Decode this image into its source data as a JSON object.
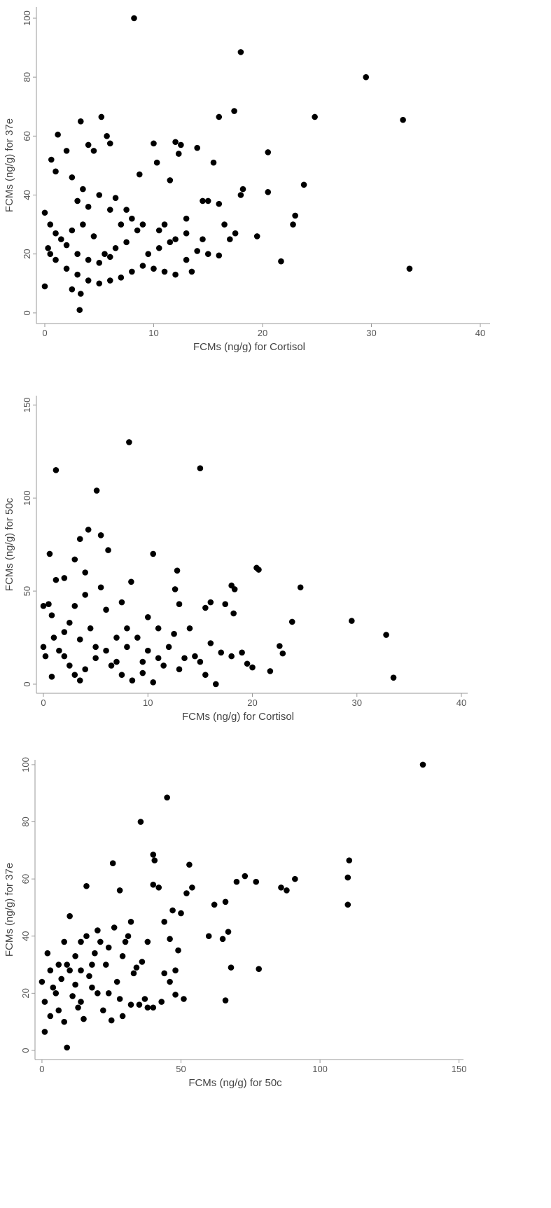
{
  "chart_data": [
    {
      "type": "scatter",
      "x_label": "FCMs (ng/g) for Cortisol",
      "y_label": "FCMs (ng/g) for 37e",
      "color": "#000000",
      "xlim": [
        -0.77,
        40.9
      ],
      "ylim": [
        -3.6,
        103.8
      ],
      "xticks": [
        0,
        10,
        20,
        30,
        40
      ],
      "yticks": [
        0,
        20,
        40,
        60,
        80,
        100
      ],
      "x": [
        8.2,
        18,
        29.5,
        17.4,
        24.8,
        16,
        32.9,
        33.5,
        21.7,
        23.8,
        20.5,
        20.5,
        22.8,
        23,
        19.5,
        18,
        18.2,
        17.5,
        0,
        0.3,
        0,
        3.2,
        3.3,
        2.5,
        1.2,
        3.3,
        5.2,
        5.7,
        6,
        10,
        12,
        12.5,
        12.3,
        14,
        15.5,
        10.3,
        8.7,
        11.5,
        1,
        0.6,
        2,
        4,
        4.5,
        2.5,
        3,
        5,
        6.5,
        7.5,
        9,
        10.5,
        12,
        13,
        14.5,
        15,
        16,
        16.5,
        17,
        15,
        14,
        13,
        12,
        13.5,
        11,
        10,
        9,
        8,
        7,
        6,
        5,
        4,
        3,
        2,
        1,
        0.5,
        1.5,
        2.5,
        3.5,
        4.5,
        5.5,
        6.5,
        7.5,
        8.5,
        9.5,
        10.5,
        11.5,
        4,
        5,
        6,
        3,
        2,
        1,
        0.5,
        7,
        8,
        6,
        4,
        3.5,
        14.5,
        16,
        13,
        11
      ],
      "values": [
        100,
        88.5,
        80,
        68.5,
        66.5,
        66.5,
        65.5,
        15,
        17.5,
        43.5,
        54.5,
        41,
        30,
        33,
        26,
        40,
        42,
        27,
        34,
        22,
        9,
        1,
        6.5,
        8,
        60.5,
        65,
        66.5,
        60,
        57.5,
        57.5,
        58,
        57,
        54,
        56,
        51,
        51,
        47,
        45,
        48,
        52,
        55,
        57,
        55,
        46,
        38,
        40,
        39,
        35,
        30,
        28,
        25,
        32,
        38,
        38,
        37,
        30,
        25,
        20,
        21,
        18,
        13,
        14,
        14,
        15,
        16,
        14,
        12,
        11,
        10,
        11,
        13,
        15,
        18,
        20,
        25,
        28,
        30,
        26,
        20,
        22,
        24,
        28,
        20,
        22,
        24,
        18,
        17,
        19,
        20,
        23,
        27,
        30,
        30,
        32,
        35,
        36,
        42,
        25,
        19.5,
        27,
        30
      ]
    },
    {
      "type": "scatter",
      "x_label": "FCMs (ng/g) for Cortisol",
      "y_label": "FCMs (ng/g) for 50c",
      "color": "#000000",
      "xlim": [
        -0.67,
        40.6
      ],
      "ylim": [
        -4.9,
        155
      ],
      "xticks": [
        0,
        10,
        20,
        30,
        40
      ],
      "yticks": [
        0,
        50,
        100,
        150
      ],
      "x": [
        8.2,
        1.2,
        15,
        5.1,
        4.3,
        5.5,
        3.5,
        6.2,
        10.5,
        0.6,
        3,
        4,
        2,
        1.2,
        8.4,
        5.5,
        7.5,
        12.8,
        12.6,
        13,
        20.4,
        20.6,
        24.6,
        18,
        18.3,
        16,
        17.4,
        18.2,
        15.5,
        29.5,
        23.8,
        32.8,
        22.6,
        22.9,
        21.7,
        33.5,
        16.5,
        0,
        0.5,
        0.8,
        0,
        0.2,
        0.8,
        2.5,
        3,
        3.5,
        4,
        5,
        6,
        7,
        8,
        9,
        10,
        11,
        11.5,
        12,
        13,
        14,
        14.5,
        15,
        15.5,
        16,
        17,
        18,
        19,
        19.5,
        20,
        1.5,
        2,
        2.5,
        3.5,
        4.5,
        5,
        6.5,
        7.5,
        8.5,
        9.5,
        10,
        11,
        12.5,
        13.5,
        3,
        4,
        6,
        1,
        2,
        7,
        8,
        9.5,
        10.5
      ],
      "values": [
        130,
        115,
        116,
        104,
        83,
        80,
        78,
        72,
        70,
        70,
        67,
        60,
        57,
        56,
        55,
        52,
        44,
        61,
        51,
        43,
        62.5,
        61.5,
        52,
        53,
        51,
        44,
        43,
        38,
        41,
        34,
        33.5,
        26.5,
        20.5,
        16.5,
        7,
        3.5,
        0,
        42,
        43,
        37,
        20,
        15,
        4,
        10,
        5,
        2,
        8,
        14,
        18,
        12,
        20,
        25,
        18,
        14,
        10,
        20,
        8,
        30,
        15,
        12,
        5,
        22,
        17,
        15,
        17,
        11,
        9,
        18,
        28,
        33,
        24,
        30,
        20,
        10,
        5,
        2,
        12,
        36,
        30,
        27,
        14,
        42,
        48,
        40,
        25,
        15,
        25,
        30,
        6,
        1
      ]
    },
    {
      "type": "scatter",
      "x_label": "FCMs (ng/g) for 50c",
      "y_label": "FCMs (ng/g) for 37e",
      "color": "#000000",
      "xlim": [
        -2.5,
        151.6
      ],
      "ylim": [
        -3.2,
        101.7
      ],
      "xticks": [
        0,
        50,
        100,
        150
      ],
      "yticks": [
        0,
        20,
        40,
        60,
        80,
        100
      ],
      "x": [
        137,
        45,
        35.5,
        40,
        40.5,
        110.5,
        25.5,
        53,
        73,
        91,
        110,
        110,
        86,
        88,
        77,
        70,
        66,
        67,
        65,
        60,
        62,
        54,
        52,
        50,
        47,
        44,
        49,
        78,
        68,
        66,
        51,
        48,
        46,
        43,
        40,
        38,
        35,
        32,
        29,
        25,
        0,
        1,
        1,
        9,
        3,
        5,
        7,
        9,
        10,
        8,
        12,
        14,
        16,
        16,
        18,
        20,
        22,
        24,
        26,
        28,
        30,
        32,
        34,
        36,
        38,
        40,
        42,
        15,
        13,
        11,
        6,
        4,
        2,
        8,
        10,
        12,
        14,
        17,
        19,
        21,
        23,
        27,
        29,
        31,
        33,
        37,
        44,
        46,
        48,
        6,
        3,
        20,
        14,
        18,
        24,
        28
      ],
      "values": [
        100,
        88.5,
        80,
        68.5,
        66.5,
        66.5,
        65.5,
        65,
        61,
        60,
        60.5,
        51,
        57,
        56,
        59,
        59,
        52,
        41.5,
        39,
        40,
        51,
        57,
        55,
        48,
        49,
        45,
        35,
        28.5,
        29,
        17.5,
        18,
        19.5,
        24,
        17,
        15,
        15,
        16,
        16,
        12,
        10.5,
        24,
        17,
        6.5,
        1,
        12,
        20,
        25,
        30,
        47,
        38,
        33,
        28,
        57.5,
        40,
        30,
        20,
        14,
        36,
        43,
        56,
        38,
        45,
        29,
        31,
        38,
        58,
        57,
        11,
        15,
        19,
        14,
        22,
        34,
        10,
        28,
        23,
        17,
        26,
        34,
        38,
        30,
        24,
        33,
        40,
        27,
        18,
        27,
        39,
        28,
        30,
        28,
        42,
        38,
        22,
        20,
        18
      ]
    }
  ]
}
